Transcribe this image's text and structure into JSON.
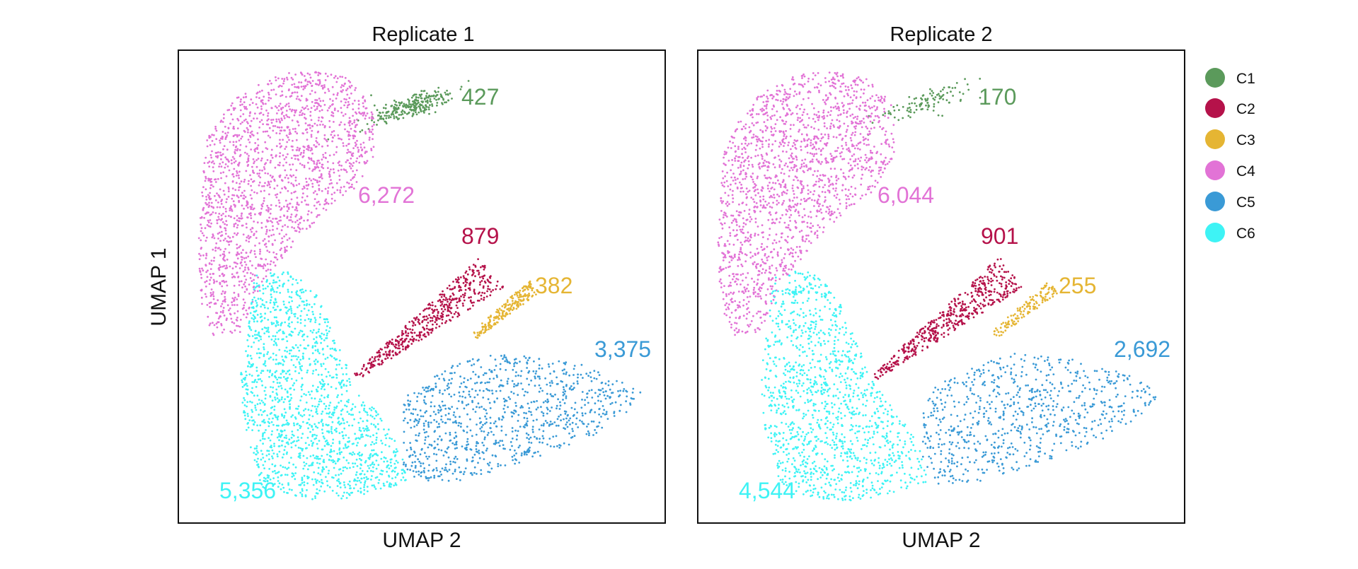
{
  "chart_data": [
    {
      "type": "scatter",
      "title": "Replicate 1",
      "xlabel": "UMAP 2",
      "ylabel": "UMAP 1",
      "grid": false,
      "clusters": [
        {
          "name": "C1",
          "count": 427,
          "count_label": "427"
        },
        {
          "name": "C2",
          "count": 879,
          "count_label": "879"
        },
        {
          "name": "C3",
          "count": 382,
          "count_label": "382"
        },
        {
          "name": "C4",
          "count": 6272,
          "count_label": "6,272"
        },
        {
          "name": "C5",
          "count": 3375,
          "count_label": "3,375"
        },
        {
          "name": "C6",
          "count": 5356,
          "count_label": "5,356"
        }
      ]
    },
    {
      "type": "scatter",
      "title": "Replicate 2",
      "xlabel": "UMAP 2",
      "ylabel": "",
      "grid": false,
      "clusters": [
        {
          "name": "C1",
          "count": 170,
          "count_label": "170"
        },
        {
          "name": "C2",
          "count": 901,
          "count_label": "901"
        },
        {
          "name": "C3",
          "count": 255,
          "count_label": "255"
        },
        {
          "name": "C4",
          "count": 6044,
          "count_label": "6,044"
        },
        {
          "name": "C5",
          "count": 2692,
          "count_label": "2,692"
        },
        {
          "name": "C6",
          "count": 4544,
          "count_label": "4,544"
        }
      ]
    }
  ],
  "legend": {
    "placement": "right",
    "items": [
      {
        "name": "C1",
        "color": "#5b9a5b"
      },
      {
        "name": "C2",
        "color": "#b5124a"
      },
      {
        "name": "C3",
        "color": "#e5b533"
      },
      {
        "name": "C4",
        "color": "#e273d6"
      },
      {
        "name": "C5",
        "color": "#3a9ad6"
      },
      {
        "name": "C6",
        "color": "#3ef3f5"
      }
    ]
  }
}
